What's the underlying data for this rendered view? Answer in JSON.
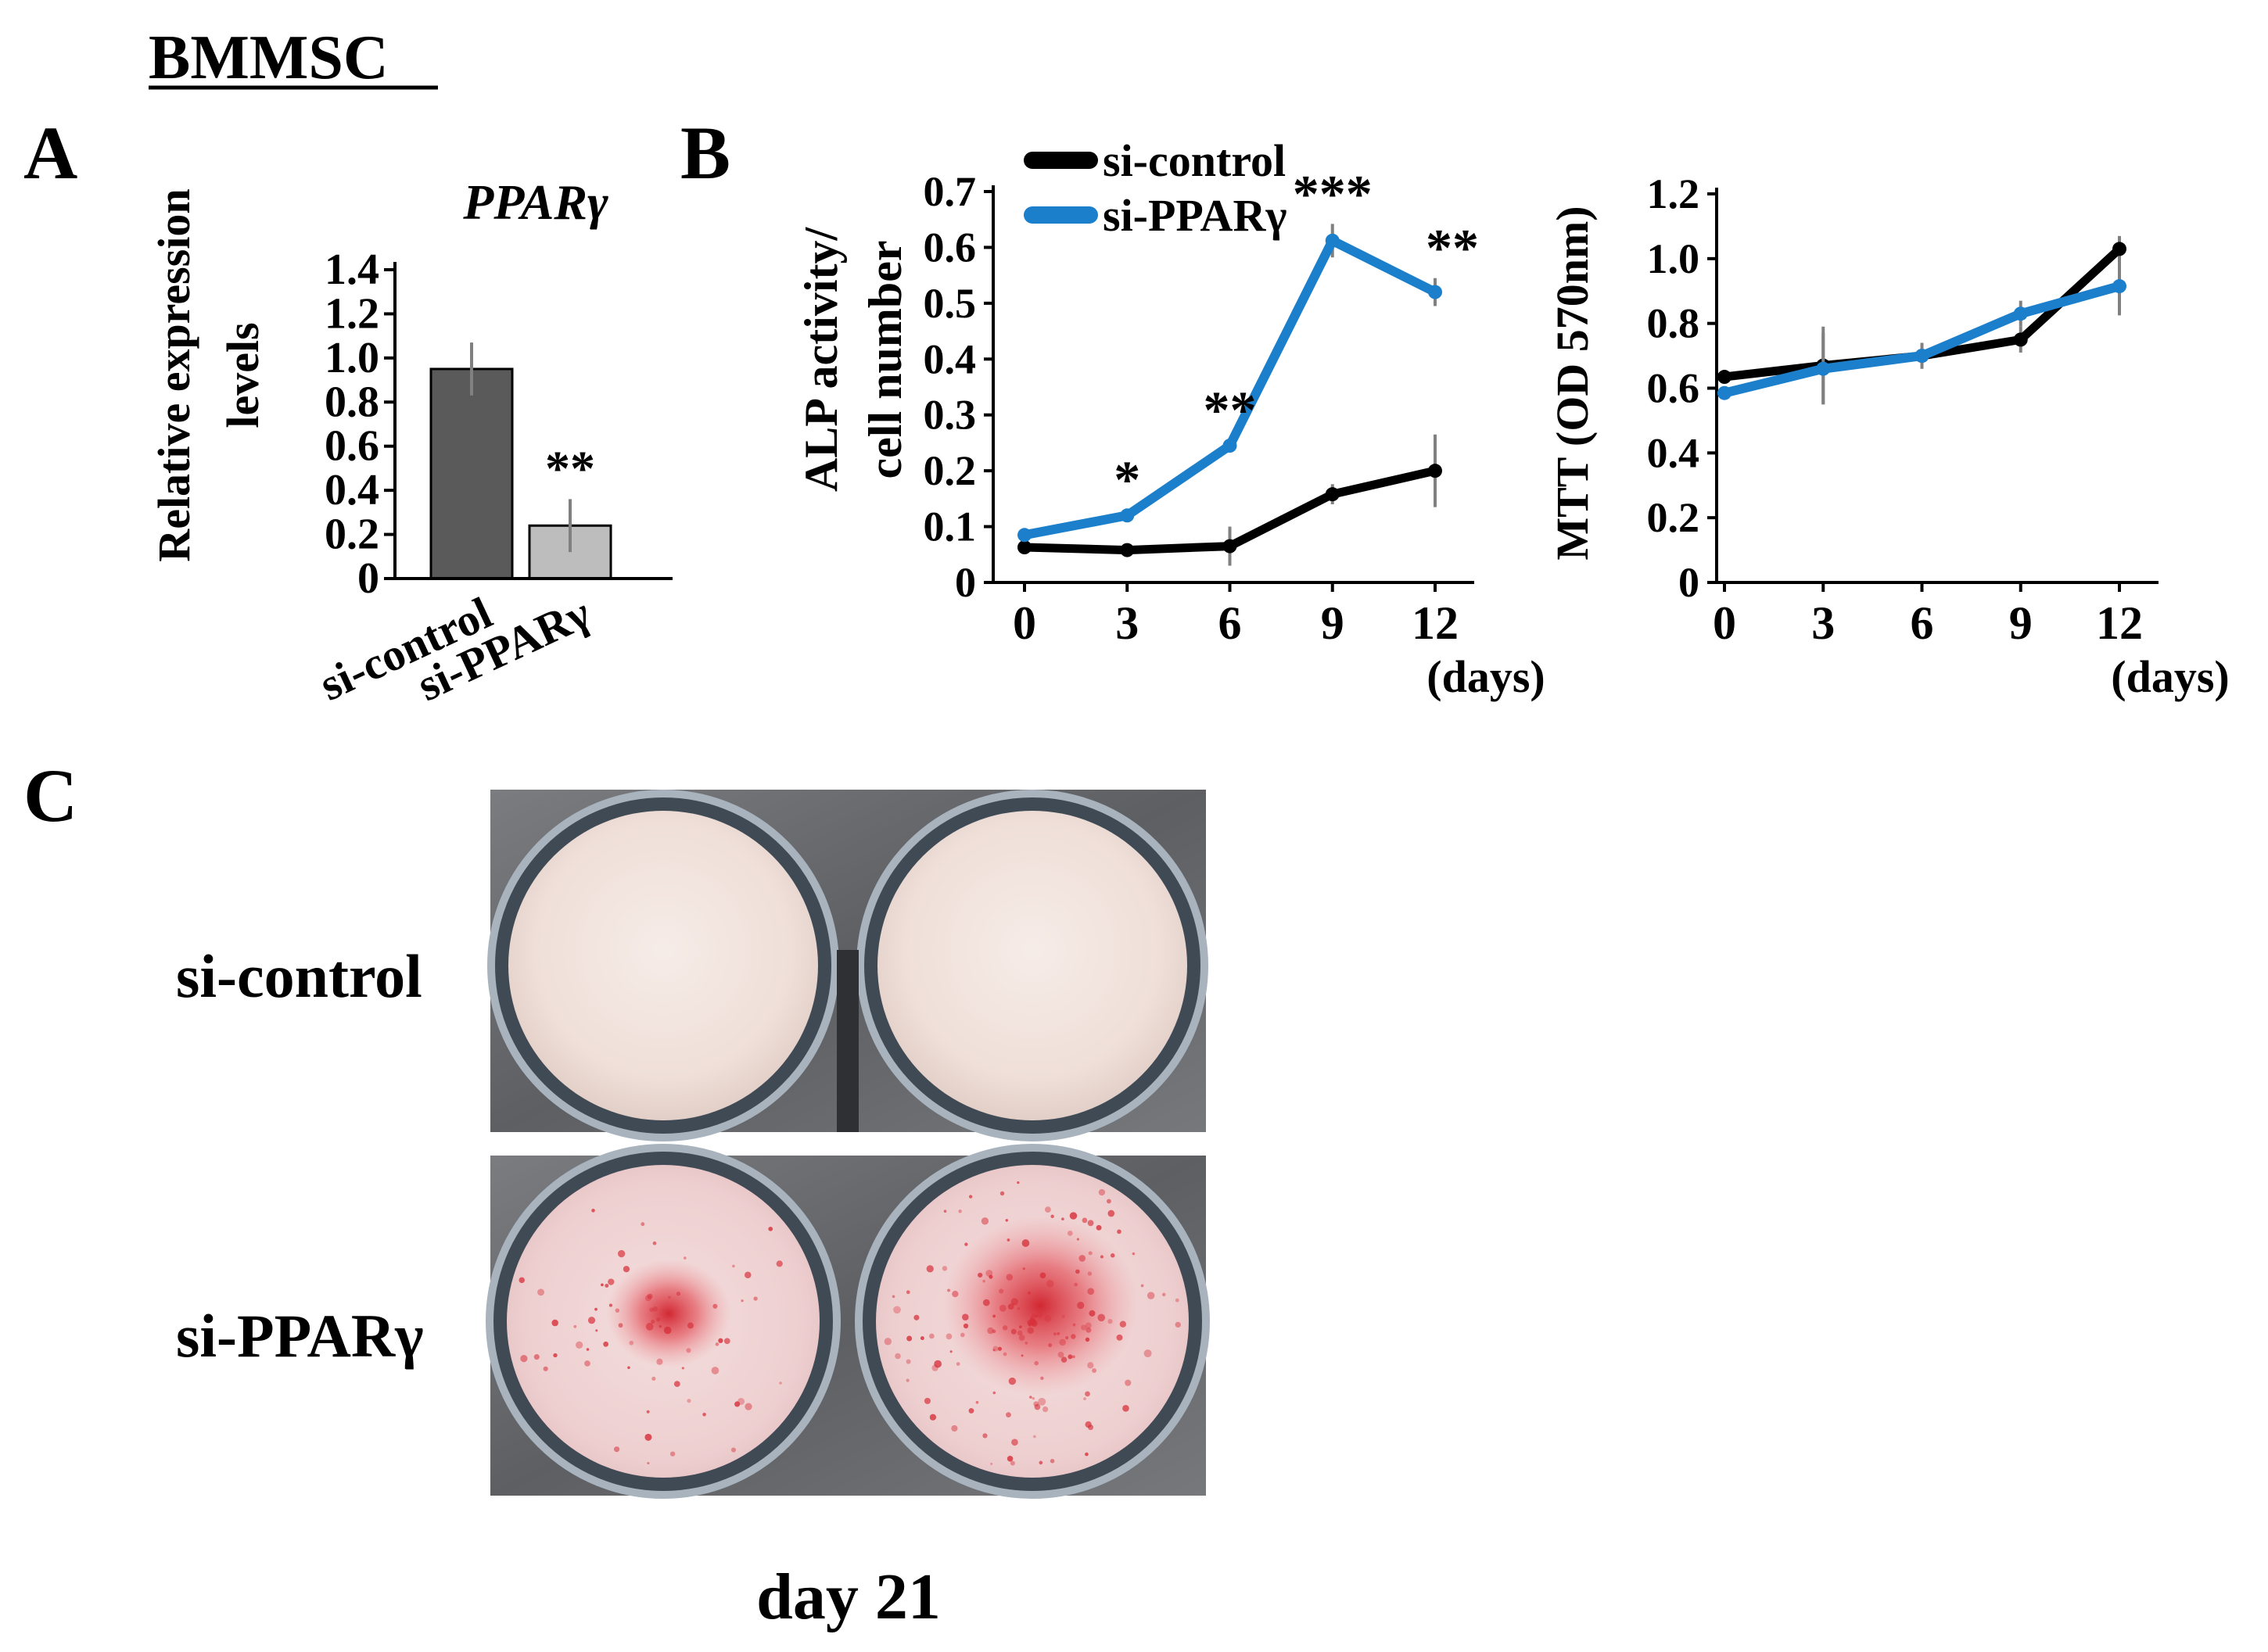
{
  "figure_title": "BMMSC",
  "panels": {
    "a": "A",
    "b": "B",
    "c": "C"
  },
  "colors": {
    "control_line": "#000000",
    "ppar_line": "#1b7fcc",
    "bar_control": "#5a5a5a",
    "bar_ppar": "#bdbdbd",
    "error_bar": "#808080"
  },
  "panel_c": {
    "row_labels": [
      "si-control",
      "si-PPARγ"
    ],
    "caption": "day 21"
  },
  "chart_data": [
    {
      "id": "A",
      "type": "bar",
      "title": "PPARγ",
      "ylabel_lines": [
        "Relative expression",
        "levels"
      ],
      "categories": [
        "si-control",
        "si-PPARγ"
      ],
      "values": [
        0.95,
        0.24
      ],
      "errors": [
        0.12,
        0.12
      ],
      "annotations": [
        "",
        "**"
      ],
      "ylim": [
        0,
        1.4
      ],
      "yticks": [
        "0",
        "0.2",
        "0.4",
        "0.6",
        "0.8",
        "1.0",
        "1.2",
        "1.4"
      ]
    },
    {
      "id": "B-left",
      "type": "line",
      "x": [
        0,
        3,
        6,
        9,
        12
      ],
      "xticks": [
        "0",
        "3",
        "6",
        "9",
        "12"
      ],
      "xunit": "(days)",
      "ylabel_lines": [
        "ALP activity/",
        "cell number"
      ],
      "ylim": [
        0,
        0.7
      ],
      "yticks": [
        "0",
        "0.1",
        "0.2",
        "0.3",
        "0.4",
        "0.5",
        "0.6",
        "0.7"
      ],
      "legend": [
        "si-control",
        "si-PPARγ"
      ],
      "series": [
        {
          "name": "si-control",
          "values": [
            0.063,
            0.058,
            0.065,
            0.158,
            0.2
          ],
          "errors": [
            0.005,
            0.012,
            0.035,
            0.018,
            0.065
          ]
        },
        {
          "name": "si-PPARγ",
          "values": [
            0.085,
            0.12,
            0.245,
            0.612,
            0.52
          ],
          "errors": [
            0.008,
            0.01,
            0.01,
            0.03,
            0.025
          ]
        }
      ],
      "annotations": [
        {
          "x": 3,
          "text": "*"
        },
        {
          "x": 6,
          "text": "**"
        },
        {
          "x": 9,
          "text": "***"
        },
        {
          "x": 12,
          "text": "**"
        }
      ]
    },
    {
      "id": "B-right",
      "type": "line",
      "x": [
        0,
        3,
        6,
        9,
        12
      ],
      "xticks": [
        "0",
        "3",
        "6",
        "9",
        "12"
      ],
      "xunit": "(days)",
      "ylabel": "MTT (OD 570nm)",
      "ylim": [
        0,
        1.2
      ],
      "yticks": [
        "0",
        "0.2",
        "0.4",
        "0.6",
        "0.8",
        "1.0",
        "1.2"
      ],
      "series": [
        {
          "name": "si-control",
          "values": [
            0.635,
            0.67,
            0.7,
            0.75,
            1.03
          ],
          "errors": [
            0.015,
            0.12,
            0.04,
            0.04,
            0.04
          ]
        },
        {
          "name": "si-PPARγ",
          "values": [
            0.585,
            0.66,
            0.7,
            0.83,
            0.915
          ],
          "errors": [
            0.02,
            0.11,
            0.04,
            0.04,
            0.09
          ]
        }
      ]
    }
  ]
}
